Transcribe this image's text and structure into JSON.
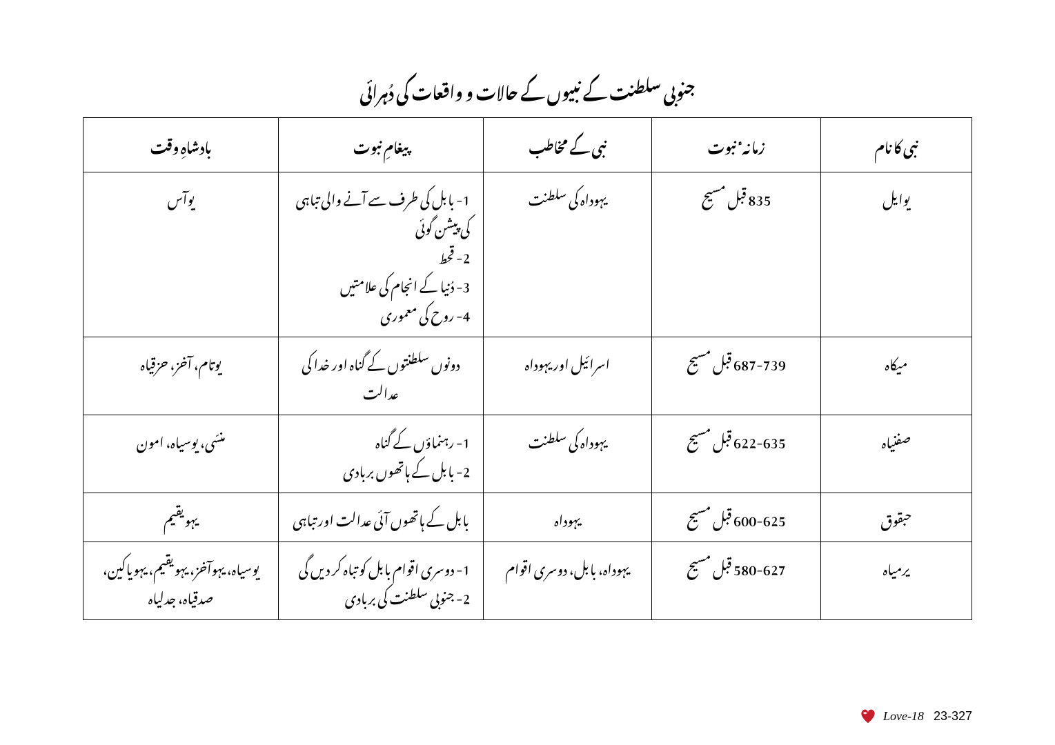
{
  "title": "جنوبی سلطنت کے نبیوں کے حالات و واقعات کی دُہرائی",
  "headers": {
    "name": "نبی کا نام",
    "period": "زمانہٴ نبوت",
    "audience": "نبی کے مخاطب",
    "message": "پیغامِ نبوت",
    "king": "بادشاہِ وقت"
  },
  "rows": [
    {
      "name": "یوایل",
      "period": "835 قبل مسیح",
      "audience": "یہوداہ کی سلطنت",
      "messages": [
        "1- بابل کی طرف سے آنے والی تباہی کی پیشن گوئی",
        "2- قحط",
        "3- دُنیا کے انجام کی علامتیں",
        "4- روح کی معموری"
      ],
      "king": "یوآس"
    },
    {
      "name": "میکاہ",
      "period": "687-739 قبل مسیح",
      "audience": "اسرائیل اور یہوداہ",
      "messages": [
        "دونوں سلطنتوں کے گناہ اور خدا کی عدالت"
      ],
      "king": "یوتام، آخز، حزقیاہ"
    },
    {
      "name": "صفنیاہ",
      "period": "622-635 قبل مسیح",
      "audience": "یہوداہ کی سلطنت",
      "messages": [
        "1- رہنماؤں کے گناہ",
        "2- بابل کے ہاتھوں بربادی"
      ],
      "king": "منسّی، یوسیاہ، امون"
    },
    {
      "name": "حبقوق",
      "period": "600-625 قبل مسیح",
      "audience": "یہوداہ",
      "messages": [
        "بابل کے ہاتھوں آئی عدالت اور تباہی"
      ],
      "king": "یہویقیم"
    },
    {
      "name": "یرمیاہ",
      "period": "580-627 قبل مسیح",
      "audience": "یہوداہ، بابل، دوسری اقوام",
      "messages": [
        "1- دوسری اقوام بابل کو تباہ کر دیں گی",
        "2- جنوبی سلطنت کی بربادی"
      ],
      "king": "یوسیاہ، یہوآخز، یہویقیم، یہویاکین، صدقیاہ، جدلیاہ"
    }
  ],
  "footer": {
    "love_label": "Love-18",
    "page_number": "23-327",
    "heart_fill": "#c81e2b",
    "heart_highlight": "#ffffff"
  }
}
